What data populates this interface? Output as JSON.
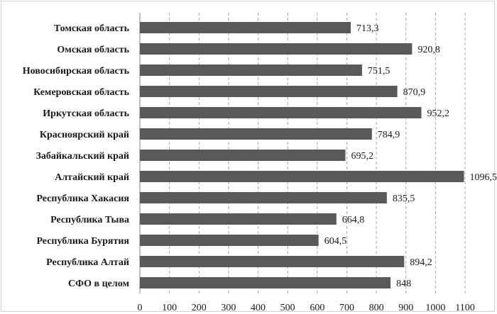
{
  "chart_data": {
    "type": "bar",
    "orientation": "horizontal",
    "categories": [
      "Томская область",
      "Омская область",
      "Новосибирская область",
      "Кемеровская область",
      "Иркутская область",
      "Красноярский край",
      "Забайкальский край",
      "Алтайский край",
      "Республика Хакасия",
      "Республика Тыва",
      "Республика Бурятия",
      "Республика Алтай",
      "СФО в целом"
    ],
    "values": [
      713.3,
      920.8,
      751.5,
      870.9,
      952.2,
      784.9,
      695.2,
      1096.5,
      835.5,
      664.8,
      604.5,
      894.2,
      848
    ],
    "value_labels": [
      "713,3",
      "920,8",
      "751,5",
      "870,9",
      "952,2",
      "784,9",
      "695,2",
      "1096,5",
      "835,5",
      "664,8",
      "604,5",
      "894,2",
      "848"
    ],
    "xlim": [
      0,
      1100
    ],
    "xticks": [
      "0",
      "100",
      "200",
      "300",
      "400",
      "500",
      "600",
      "700",
      "800",
      "900",
      "1000",
      "1100"
    ],
    "grid": "vertical-dashed",
    "bar_color": "#595959",
    "grid_color": "#a6a6a6",
    "title": "",
    "xlabel": "",
    "ylabel": ""
  }
}
